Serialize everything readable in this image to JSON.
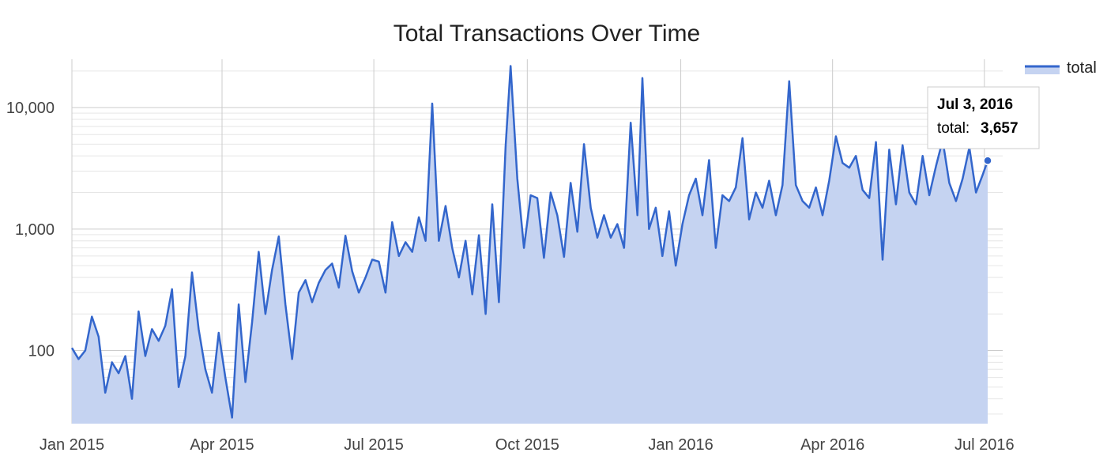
{
  "chart_data": {
    "type": "area",
    "title": "Total Transactions Over Time",
    "xlabel": "",
    "ylabel": "",
    "y_scale": "log",
    "ylim": [
      25,
      25000
    ],
    "y_ticks": [
      100,
      1000,
      10000
    ],
    "y_tick_labels": [
      "100",
      "1,000",
      "10,000"
    ],
    "x_ticks": [
      "2015-01-01",
      "2015-04-01",
      "2015-07-01",
      "2015-10-01",
      "2016-01-01",
      "2016-04-01",
      "2016-07-01"
    ],
    "x_tick_labels": [
      "Jan 2015",
      "Apr 2015",
      "Jul 2015",
      "Oct 2015",
      "Jan 2016",
      "Apr 2016",
      "Jul 2016"
    ],
    "xlim": [
      "2015-01-01",
      "2016-07-12"
    ],
    "grid": true,
    "legend": "top-right",
    "colors": {
      "line": "#3366cc",
      "fill": "#c5d3f1",
      "grid": "#cccccc",
      "minor_grid": "#e6e6e6"
    },
    "series": [
      {
        "name": "total",
        "points": [
          [
            "2015-01-01",
            105
          ],
          [
            "2015-01-05",
            85
          ],
          [
            "2015-01-09",
            100
          ],
          [
            "2015-01-13",
            190
          ],
          [
            "2015-01-17",
            130
          ],
          [
            "2015-01-21",
            45
          ],
          [
            "2015-01-25",
            80
          ],
          [
            "2015-01-29",
            65
          ],
          [
            "2015-02-02",
            90
          ],
          [
            "2015-02-06",
            40
          ],
          [
            "2015-02-10",
            210
          ],
          [
            "2015-02-14",
            90
          ],
          [
            "2015-02-18",
            150
          ],
          [
            "2015-02-22",
            120
          ],
          [
            "2015-02-26",
            160
          ],
          [
            "2015-03-02",
            320
          ],
          [
            "2015-03-06",
            50
          ],
          [
            "2015-03-10",
            90
          ],
          [
            "2015-03-14",
            440
          ],
          [
            "2015-03-18",
            150
          ],
          [
            "2015-03-22",
            70
          ],
          [
            "2015-03-26",
            45
          ],
          [
            "2015-03-30",
            140
          ],
          [
            "2015-04-03",
            60
          ],
          [
            "2015-04-07",
            28
          ],
          [
            "2015-04-11",
            240
          ],
          [
            "2015-04-15",
            55
          ],
          [
            "2015-04-19",
            170
          ],
          [
            "2015-04-23",
            650
          ],
          [
            "2015-04-27",
            200
          ],
          [
            "2015-05-01",
            460
          ],
          [
            "2015-05-05",
            870
          ],
          [
            "2015-05-09",
            240
          ],
          [
            "2015-05-13",
            85
          ],
          [
            "2015-05-17",
            300
          ],
          [
            "2015-05-21",
            380
          ],
          [
            "2015-05-25",
            250
          ],
          [
            "2015-05-29",
            360
          ],
          [
            "2015-06-02",
            460
          ],
          [
            "2015-06-06",
            520
          ],
          [
            "2015-06-10",
            330
          ],
          [
            "2015-06-14",
            880
          ],
          [
            "2015-06-18",
            450
          ],
          [
            "2015-06-22",
            300
          ],
          [
            "2015-06-26",
            400
          ],
          [
            "2015-06-30",
            560
          ],
          [
            "2015-07-04",
            540
          ],
          [
            "2015-07-08",
            300
          ],
          [
            "2015-07-12",
            1140
          ],
          [
            "2015-07-16",
            600
          ],
          [
            "2015-07-20",
            780
          ],
          [
            "2015-07-24",
            650
          ],
          [
            "2015-07-28",
            1250
          ],
          [
            "2015-08-01",
            800
          ],
          [
            "2015-08-05",
            10800
          ],
          [
            "2015-08-09",
            800
          ],
          [
            "2015-08-13",
            1550
          ],
          [
            "2015-08-17",
            700
          ],
          [
            "2015-08-21",
            400
          ],
          [
            "2015-08-25",
            800
          ],
          [
            "2015-08-29",
            290
          ],
          [
            "2015-09-02",
            890
          ],
          [
            "2015-09-06",
            200
          ],
          [
            "2015-09-10",
            1600
          ],
          [
            "2015-09-14",
            250
          ],
          [
            "2015-09-18",
            4800
          ],
          [
            "2015-09-21",
            22000
          ],
          [
            "2015-09-25",
            2600
          ],
          [
            "2015-09-29",
            700
          ],
          [
            "2015-10-03",
            1900
          ],
          [
            "2015-10-07",
            1800
          ],
          [
            "2015-10-11",
            580
          ],
          [
            "2015-10-15",
            2000
          ],
          [
            "2015-10-19",
            1300
          ],
          [
            "2015-10-23",
            590
          ],
          [
            "2015-10-27",
            2400
          ],
          [
            "2015-10-31",
            950
          ],
          [
            "2015-11-04",
            5000
          ],
          [
            "2015-11-08",
            1500
          ],
          [
            "2015-11-12",
            850
          ],
          [
            "2015-11-16",
            1300
          ],
          [
            "2015-11-20",
            850
          ],
          [
            "2015-11-24",
            1100
          ],
          [
            "2015-11-28",
            700
          ],
          [
            "2015-12-02",
            7500
          ],
          [
            "2015-12-06",
            1300
          ],
          [
            "2015-12-09",
            17500
          ],
          [
            "2015-12-13",
            1000
          ],
          [
            "2015-12-17",
            1500
          ],
          [
            "2015-12-21",
            600
          ],
          [
            "2015-12-25",
            1400
          ],
          [
            "2015-12-29",
            500
          ],
          [
            "2016-01-02",
            1100
          ],
          [
            "2016-01-06",
            1900
          ],
          [
            "2016-01-10",
            2600
          ],
          [
            "2016-01-14",
            1300
          ],
          [
            "2016-01-18",
            3700
          ],
          [
            "2016-01-22",
            700
          ],
          [
            "2016-01-26",
            1900
          ],
          [
            "2016-01-30",
            1700
          ],
          [
            "2016-02-03",
            2200
          ],
          [
            "2016-02-07",
            5600
          ],
          [
            "2016-02-11",
            1200
          ],
          [
            "2016-02-15",
            2000
          ],
          [
            "2016-02-19",
            1500
          ],
          [
            "2016-02-23",
            2500
          ],
          [
            "2016-02-27",
            1300
          ],
          [
            "2016-03-02",
            2300
          ],
          [
            "2016-03-06",
            16500
          ],
          [
            "2016-03-10",
            2300
          ],
          [
            "2016-03-14",
            1700
          ],
          [
            "2016-03-18",
            1500
          ],
          [
            "2016-03-22",
            2200
          ],
          [
            "2016-03-26",
            1300
          ],
          [
            "2016-03-30",
            2500
          ],
          [
            "2016-04-03",
            5800
          ],
          [
            "2016-04-07",
            3500
          ],
          [
            "2016-04-11",
            3200
          ],
          [
            "2016-04-15",
            4000
          ],
          [
            "2016-04-19",
            2100
          ],
          [
            "2016-04-23",
            1800
          ],
          [
            "2016-04-27",
            5200
          ],
          [
            "2016-05-01",
            560
          ],
          [
            "2016-05-05",
            4500
          ],
          [
            "2016-05-09",
            1600
          ],
          [
            "2016-05-13",
            4900
          ],
          [
            "2016-05-17",
            2000
          ],
          [
            "2016-05-21",
            1600
          ],
          [
            "2016-05-25",
            4000
          ],
          [
            "2016-05-29",
            1900
          ],
          [
            "2016-06-02",
            3300
          ],
          [
            "2016-06-06",
            5400
          ],
          [
            "2016-06-10",
            2400
          ],
          [
            "2016-06-14",
            1700
          ],
          [
            "2016-06-18",
            2600
          ],
          [
            "2016-06-22",
            4700
          ],
          [
            "2016-06-26",
            2000
          ],
          [
            "2016-06-30",
            2800
          ],
          [
            "2016-07-03",
            3657
          ]
        ]
      }
    ],
    "tooltip": {
      "date": "Jul 3, 2016",
      "label": "total:",
      "value": "3,657",
      "x": "2016-07-03",
      "y": 3657
    }
  }
}
